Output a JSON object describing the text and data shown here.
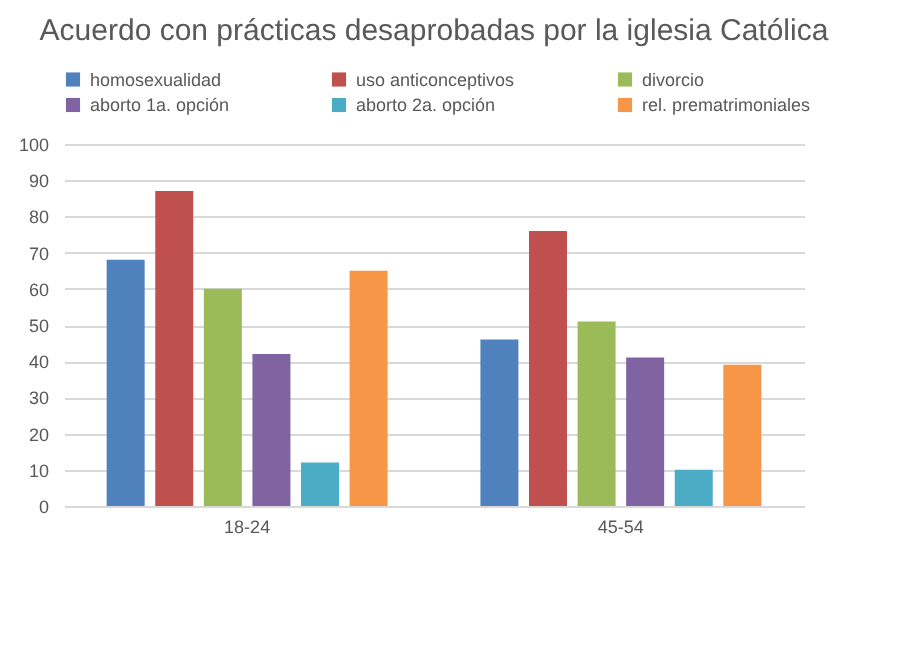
{
  "chart_data": {
    "type": "bar",
    "title": "Acuerdo con prácticas desaprobadas por la iglesia Católica",
    "categories": [
      "18-24",
      "45-54"
    ],
    "series": [
      {
        "name": "homosexualidad",
        "color": "#4f81bd",
        "values": [
          68,
          46
        ]
      },
      {
        "name": "uso anticonceptivos",
        "color": "#c0504d",
        "values": [
          87,
          76
        ]
      },
      {
        "name": "divorcio",
        "color": "#9bbb59",
        "values": [
          60,
          51
        ]
      },
      {
        "name": "aborto 1a. opción",
        "color": "#8064a2",
        "values": [
          42,
          41
        ]
      },
      {
        "name": "aborto 2a. opción",
        "color": "#4bacc6",
        "values": [
          12,
          10
        ]
      },
      {
        "name": "rel. prematrimoniales",
        "color": "#f79646",
        "values": [
          65,
          39
        ]
      }
    ],
    "ylim": [
      0,
      100
    ],
    "yticks": [
      0,
      10,
      20,
      30,
      40,
      50,
      60,
      70,
      80,
      90,
      100
    ],
    "grid": "y",
    "legend": "top"
  }
}
